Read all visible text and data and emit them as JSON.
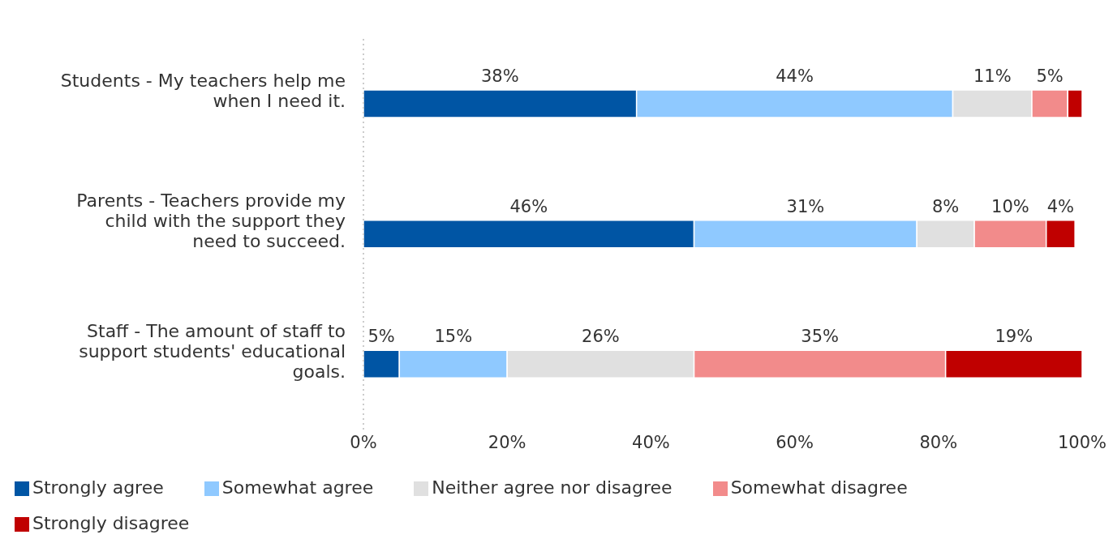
{
  "chart_data": {
    "type": "bar",
    "orientation": "horizontal",
    "stacked": true,
    "categories": [
      "Students - My teachers help me when I need it.",
      "Parents - Teachers provide my child with the support they need to succeed.",
      "Staff - The amount of staff to support students' educational goals."
    ],
    "series": [
      {
        "name": "Strongly agree",
        "color": "#0055a4",
        "values": [
          38,
          46,
          5
        ],
        "value_labels": [
          "38%",
          "46%",
          "5%"
        ]
      },
      {
        "name": "Somewhat agree",
        "color": "#8fc9ff",
        "values": [
          44,
          31,
          15
        ],
        "value_labels": [
          "44%",
          "31%",
          "15%"
        ]
      },
      {
        "name": "Neither agree nor disagree",
        "color": "#e0e0e0",
        "values": [
          11,
          8,
          26
        ],
        "value_labels": [
          "11%",
          "8%",
          "26%"
        ]
      },
      {
        "name": "Somewhat disagree",
        "color": "#f28b8b",
        "values": [
          5,
          10,
          35
        ],
        "value_labels": [
          "5%",
          "10%",
          "35%"
        ]
      },
      {
        "name": "Strongly disagree",
        "color": "#c00000",
        "values": [
          2,
          4,
          19
        ],
        "value_labels": [
          null,
          "4%",
          "19%"
        ]
      }
    ],
    "xlim": [
      0,
      100
    ],
    "xticks": [
      {
        "value": 0,
        "label": "0%"
      },
      {
        "value": 20,
        "label": "20%"
      },
      {
        "value": 40,
        "label": "40%"
      },
      {
        "value": 60,
        "label": "60%"
      },
      {
        "value": 80,
        "label": "80%"
      },
      {
        "value": 100,
        "label": "100%"
      }
    ],
    "grid": false,
    "legend": "bottom"
  }
}
